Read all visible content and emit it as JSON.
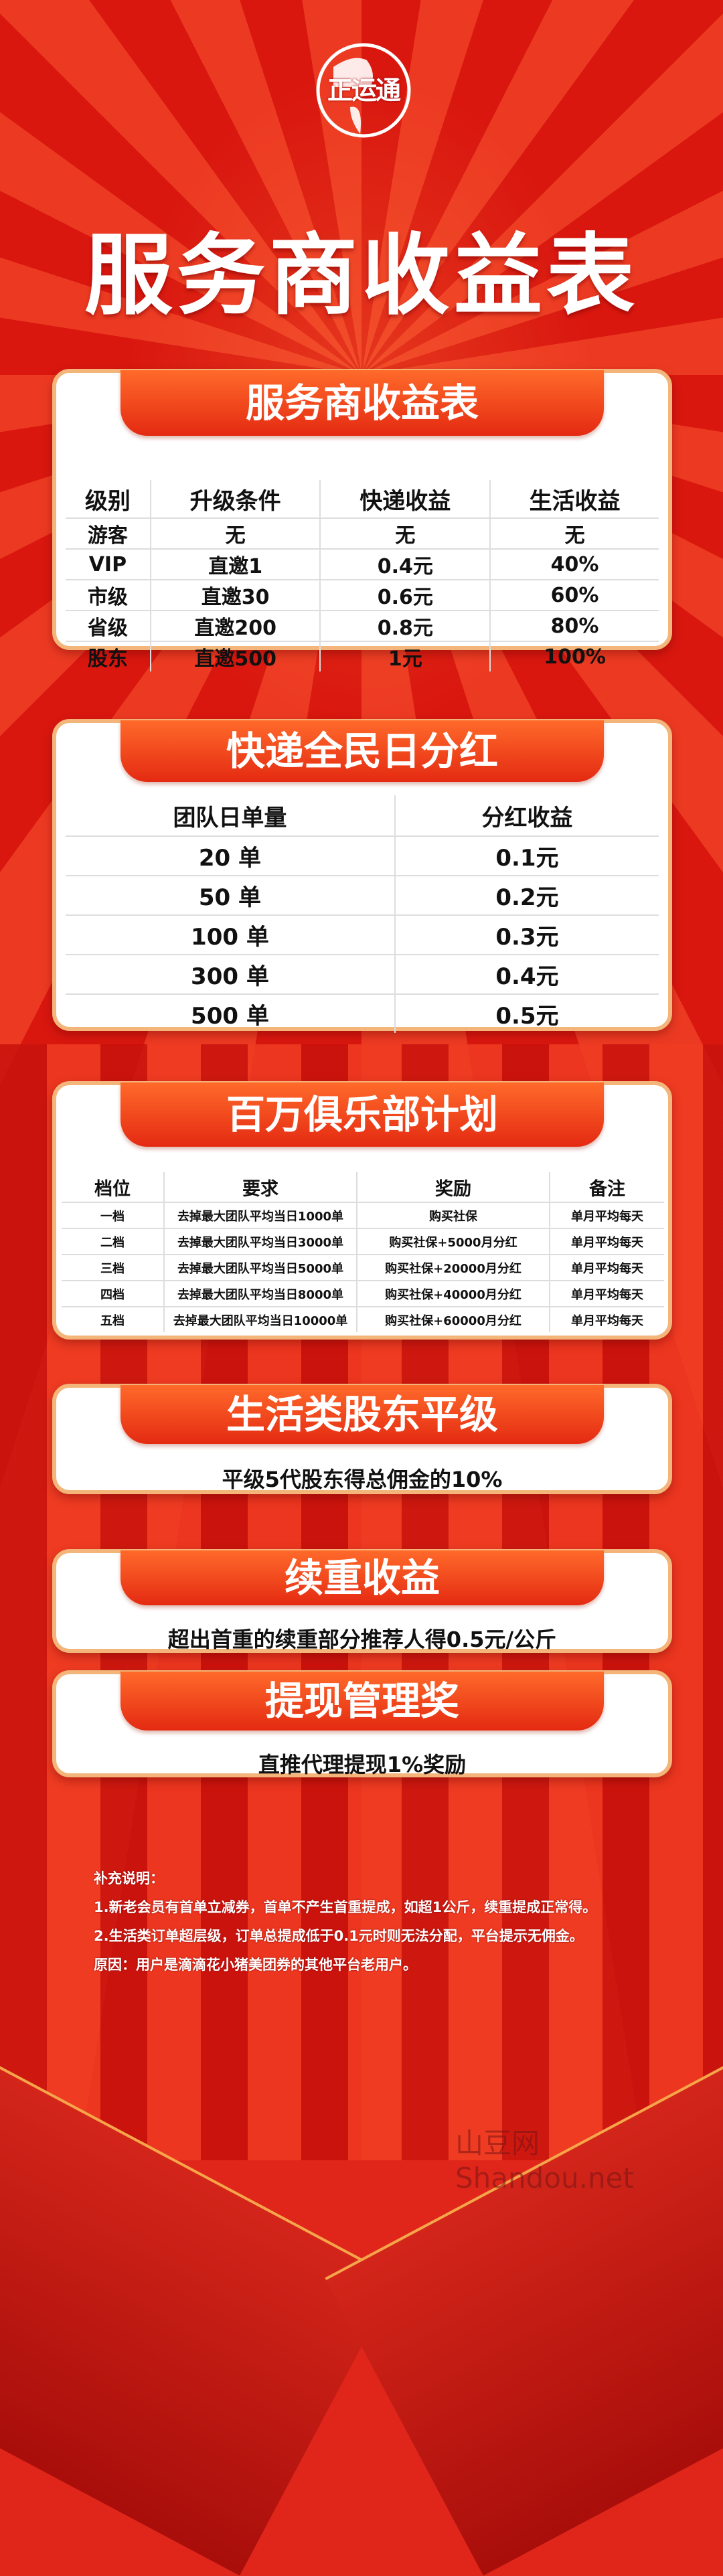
{
  "brand": {
    "logo_text": "正运通"
  },
  "main_title": "服务商收益表",
  "card1": {
    "title": "服务商收益表",
    "headers": [
      "级别",
      "升级条件",
      "快递收益",
      "生活收益"
    ],
    "rows": [
      [
        "游客",
        "无",
        "无",
        "无"
      ],
      [
        "VIP",
        "直邀1",
        "0.4元",
        "40%"
      ],
      [
        "市级",
        "直邀30",
        "0.6元",
        "60%"
      ],
      [
        "省级",
        "直邀200",
        "0.8元",
        "80%"
      ],
      [
        "股东",
        "直邀500",
        "1元",
        "100%"
      ]
    ]
  },
  "card2": {
    "title": "快递全民日分红",
    "headers": [
      "团队日单量",
      "分红收益"
    ],
    "rows": [
      [
        "20 单",
        "0.1元"
      ],
      [
        "50 单",
        "0.2元"
      ],
      [
        "100 单",
        "0.3元"
      ],
      [
        "300 单",
        "0.4元"
      ],
      [
        "500 单",
        "0.5元"
      ]
    ]
  },
  "card3": {
    "title": "百万俱乐部计划",
    "headers": [
      "档位",
      "要求",
      "奖励",
      "备注"
    ],
    "rows": [
      [
        "一档",
        "去掉最大团队平均当日1000单",
        "购买社保",
        "单月平均每天"
      ],
      [
        "二档",
        "去掉最大团队平均当日3000单",
        "购买社保+5000月分红",
        "单月平均每天"
      ],
      [
        "三档",
        "去掉最大团队平均当日5000单",
        "购买社保+20000月分红",
        "单月平均每天"
      ],
      [
        "四档",
        "去掉最大团队平均当日8000单",
        "购买社保+40000月分红",
        "单月平均每天"
      ],
      [
        "五档",
        "去掉最大团队平均当日10000单",
        "购买社保+60000月分红",
        "单月平均每天"
      ]
    ]
  },
  "card4": {
    "title": "生活类股东平级",
    "text": "平级5代股东得总佣金的10%"
  },
  "card5": {
    "title": "续重收益",
    "text": "超出首重的续重部分推荐人得0.5元/公斤"
  },
  "card6": {
    "title": "提现管理奖",
    "text": "直推代理提现1%奖励"
  },
  "notes": {
    "heading": "补充说明：",
    "lines": [
      "1.新老会员有首单立减券，首单不产生首重提成，如超1公斤，续重提成正常得。",
      "2.生活类订单超层级，订单总提成低于0.1元时则无法分配，平台提示无佣金。",
      "原因：用户是滴滴花小猪美团券的其他平台老用户。"
    ]
  },
  "watermark": "山豆网 Shandou.net",
  "colors": {
    "background": "#e0261a",
    "banner": "#e42a12",
    "card_border": "#f3b57a"
  }
}
